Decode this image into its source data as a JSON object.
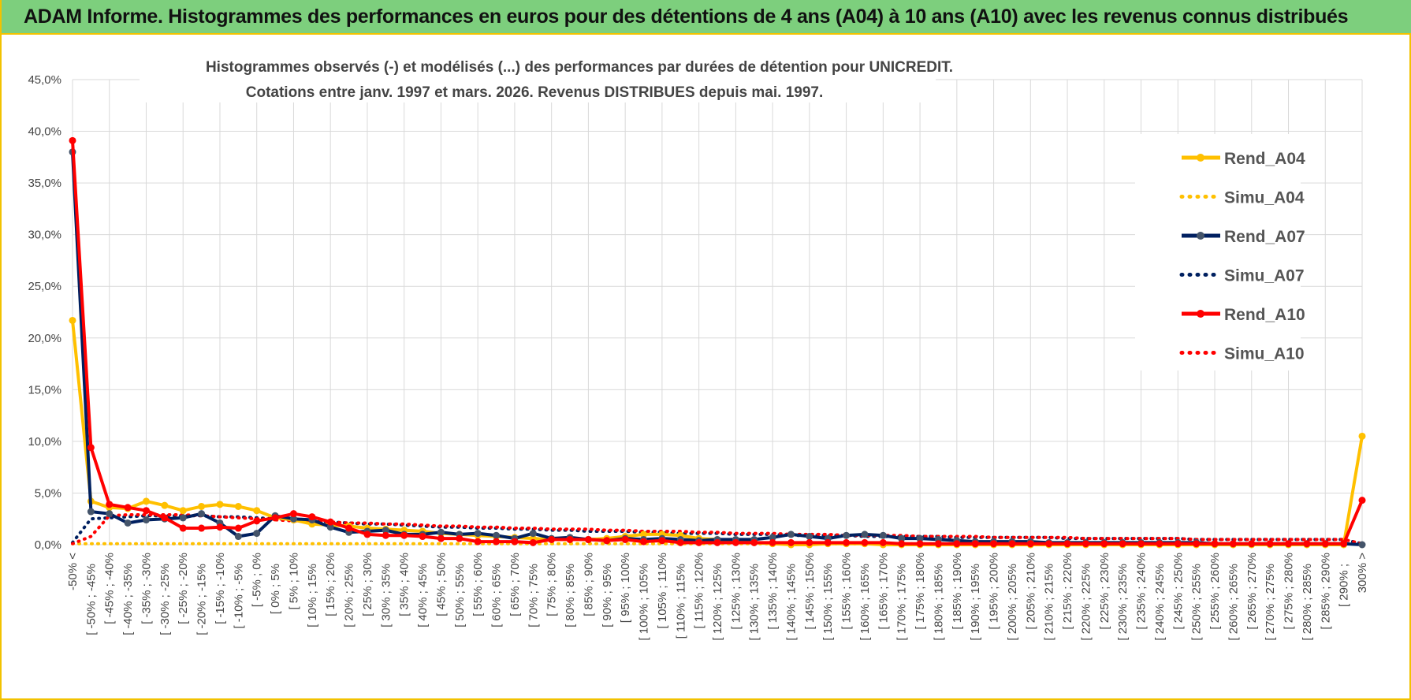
{
  "banner": {
    "title": "ADAM Informe. Histogrammes des performances en euros pour des détentions de 4 ans (A04) à 10 ans (A10) avec les revenus connus distribués"
  },
  "colors": {
    "banner_bg": "#7dcf7d",
    "frame_border": "#f2c200",
    "grid": "#d9d9d9",
    "A04": "#ffc000",
    "A07": "#002060",
    "A07_marker": "#44546a",
    "A10": "#ff0000"
  },
  "chart_data": {
    "type": "line",
    "title_lines": [
      "Histogrammes observés (-) et modélisés (...) des performances par durées de détention pour UNICREDIT.",
      "Cotations entre janv. 1997 et mars. 2026. Revenus DISTRIBUES depuis mai. 1997."
    ],
    "ylim": [
      0,
      45
    ],
    "y_ticks": [
      "0,0%",
      "5,0%",
      "10,0%",
      "15,0%",
      "20,0%",
      "25,0%",
      "30,0%",
      "35,0%",
      "40,0%",
      "45,0%"
    ],
    "y_tick_values": [
      0,
      5,
      10,
      15,
      20,
      25,
      30,
      35,
      40,
      45
    ],
    "grid": true,
    "legend_position": "right",
    "categories": [
      "-50% <",
      "[ -50% ; -45%",
      "[ -45% ; -40%",
      "[ -40% ; -35%",
      "[ -35% ; -30%",
      "[ -30% ; -25%",
      "[ -25% ; -20%",
      "[ -20% ; -15%",
      "[ -15% ; -10%",
      "[ -10% ; -5%",
      "[ -5% ; 0%",
      "[ 0% ; 5%",
      "[ 5% ; 10%",
      "[ 10% ; 15%",
      "[ 15% ; 20%",
      "[ 20% ; 25%",
      "[ 25% ; 30%",
      "[ 30% ; 35%",
      "[ 35% ; 40%",
      "[ 40% ; 45%",
      "[ 45% ; 50%",
      "[ 50% ; 55%",
      "[ 55% ; 60%",
      "[ 60% ; 65%",
      "[ 65% ; 70%",
      "[ 70% ; 75%",
      "[ 75% ; 80%",
      "[ 80% ; 85%",
      "[ 85% ; 90%",
      "[ 90% ; 95%",
      "[ 95% ; 100%",
      "[ 100% ; 105%",
      "[ 105% ; 110%",
      "[ 110% ; 115%",
      "[ 115% ; 120%",
      "[ 120% ; 125%",
      "[ 125% ; 130%",
      "[ 130% ; 135%",
      "[ 135% ; 140%",
      "[ 140% ; 145%",
      "[ 145% ; 150%",
      "[ 150% ; 155%",
      "[ 155% ; 160%",
      "[ 160% ; 165%",
      "[ 165% ; 170%",
      "[ 170% ; 175%",
      "[ 175% ; 180%",
      "[ 180% ; 185%",
      "[ 185% ; 190%",
      "[ 190% ; 195%",
      "[ 195% ; 200%",
      "[ 200% ; 205%",
      "[ 205% ; 210%",
      "[ 210% ; 215%",
      "[ 215% ; 220%",
      "[ 220% ; 225%",
      "[ 225% ; 230%",
      "[ 230% ; 235%",
      "[ 235% ; 240%",
      "[ 240% ; 245%",
      "[ 245% ; 250%",
      "[ 250% ; 255%",
      "[ 255% ; 260%",
      "[ 260% ; 265%",
      "[ 265% ; 270%",
      "[ 270% ; 275%",
      "[ 275% ; 280%",
      "[ 280% ; 285%",
      "[ 285% ; 290%",
      "[ 290% ;",
      "300% >"
    ],
    "x_label_every": 2,
    "series": [
      {
        "name": "Rend_A04",
        "color": "#ffc000",
        "style": "solid",
        "marker": true,
        "values": [
          21.7,
          4.2,
          3.6,
          3.5,
          4.2,
          3.8,
          3.3,
          3.7,
          3.9,
          3.7,
          3.3,
          2.6,
          2.4,
          2.0,
          1.9,
          1.8,
          1.6,
          1.5,
          1.4,
          1.3,
          1.1,
          1.0,
          0.9,
          0.8,
          0.7,
          0.6,
          0.5,
          0.5,
          0.5,
          0.6,
          0.8,
          1.0,
          1.0,
          0.9,
          0.6,
          0.5,
          0.3,
          0.2,
          0.1,
          0.0,
          0.0,
          0.1,
          0.1,
          0.1,
          0.0,
          0.0,
          0.0,
          0.0,
          0.0,
          0.0,
          0.0,
          0.0,
          0.0,
          0.0,
          0.0,
          0.0,
          0.0,
          0.0,
          0.0,
          0.0,
          0.0,
          0.0,
          0.0,
          0.0,
          0.0,
          0.0,
          0.0,
          0.0,
          0.0,
          0.0,
          10.5
        ]
      },
      {
        "name": "Simu_A04",
        "color": "#ffc000",
        "style": "dotted",
        "marker": false,
        "values": [
          0.1,
          0.1,
          0.1,
          0.1,
          0.1,
          0.1,
          0.1,
          0.1,
          0.1,
          0.1,
          0.1,
          0.1,
          0.1,
          0.1,
          0.1,
          0.1,
          0.1,
          0.1,
          0.1,
          0.1,
          0.1,
          0.1,
          0.1,
          0.1,
          0.1,
          0.1,
          0.1,
          0.1,
          0.1,
          0.1,
          0.1,
          0.1,
          0.1,
          0.1,
          0.1,
          0.1,
          0.1,
          0.1,
          0.1,
          0.1,
          0.1,
          0.1,
          0.1,
          0.1,
          0.1,
          0.1,
          0.1,
          0.1,
          0.1,
          0.1,
          0.1,
          0.1,
          0.1,
          0.1,
          0.1,
          0.1,
          0.1,
          0.1,
          0.1,
          0.1,
          0.1,
          0.1,
          0.1,
          0.1,
          0.1,
          0.1,
          0.1,
          0.1,
          0.1,
          0.1,
          0.1
        ]
      },
      {
        "name": "Rend_A07",
        "color": "#002060",
        "style": "solid",
        "marker": true,
        "marker_color": "#44546a",
        "values": [
          38.0,
          3.2,
          3.0,
          2.1,
          2.4,
          2.5,
          2.6,
          3.0,
          2.1,
          0.8,
          1.1,
          2.8,
          2.5,
          2.4,
          1.7,
          1.2,
          1.3,
          1.4,
          1.0,
          1.0,
          1.2,
          1.0,
          1.1,
          0.9,
          0.6,
          1.1,
          0.6,
          0.7,
          0.5,
          0.4,
          0.6,
          0.5,
          0.6,
          0.5,
          0.4,
          0.5,
          0.5,
          0.5,
          0.7,
          1.0,
          0.8,
          0.6,
          0.9,
          1.0,
          0.9,
          0.6,
          0.6,
          0.5,
          0.4,
          0.3,
          0.3,
          0.3,
          0.3,
          0.2,
          0.2,
          0.2,
          0.2,
          0.2,
          0.2,
          0.2,
          0.2,
          0.2,
          0.1,
          0.1,
          0.1,
          0.1,
          0.1,
          0.1,
          0.1,
          0.1,
          0.0
        ]
      },
      {
        "name": "Simu_A07",
        "color": "#002060",
        "style": "dotted",
        "marker": false,
        "values": [
          0.2,
          2.5,
          2.6,
          2.7,
          2.8,
          2.8,
          2.8,
          2.8,
          2.7,
          2.7,
          2.6,
          2.5,
          2.4,
          2.3,
          2.2,
          2.1,
          2.0,
          2.0,
          1.9,
          1.8,
          1.7,
          1.7,
          1.6,
          1.6,
          1.5,
          1.5,
          1.4,
          1.4,
          1.3,
          1.3,
          1.3,
          1.2,
          1.2,
          1.1,
          1.1,
          1.1,
          1.0,
          1.0,
          1.0,
          0.9,
          0.9,
          0.9,
          0.9,
          0.8,
          0.8,
          0.8,
          0.8,
          0.8,
          0.7,
          0.7,
          0.7,
          0.7,
          0.7,
          0.7,
          0.6,
          0.6,
          0.6,
          0.6,
          0.6,
          0.6,
          0.6,
          0.5,
          0.5,
          0.5,
          0.5,
          0.5,
          0.5,
          0.5,
          0.5,
          0.5,
          0.1
        ]
      },
      {
        "name": "Rend_A10",
        "color": "#ff0000",
        "style": "solid",
        "marker": true,
        "values": [
          39.1,
          9.4,
          3.9,
          3.6,
          3.3,
          2.6,
          1.6,
          1.6,
          1.7,
          1.6,
          2.3,
          2.6,
          3.0,
          2.7,
          2.2,
          1.6,
          1.0,
          0.9,
          0.9,
          0.8,
          0.6,
          0.6,
          0.3,
          0.3,
          0.3,
          0.2,
          0.5,
          0.5,
          0.5,
          0.4,
          0.5,
          0.3,
          0.4,
          0.2,
          0.2,
          0.2,
          0.2,
          0.2,
          0.2,
          0.2,
          0.2,
          0.2,
          0.2,
          0.2,
          0.2,
          0.1,
          0.1,
          0.1,
          0.1,
          0.1,
          0.1,
          0.1,
          0.1,
          0.1,
          0.1,
          0.1,
          0.1,
          0.1,
          0.1,
          0.1,
          0.1,
          0.1,
          0.1,
          0.1,
          0.1,
          0.1,
          0.1,
          0.1,
          0.1,
          0.1,
          4.3
        ]
      },
      {
        "name": "Simu_A10",
        "color": "#ff0000",
        "style": "dotted",
        "marker": false,
        "values": [
          0.1,
          0.8,
          2.8,
          2.9,
          2.9,
          2.9,
          2.9,
          2.8,
          2.7,
          2.6,
          2.5,
          2.4,
          2.3,
          2.2,
          2.2,
          2.1,
          2.1,
          2.0,
          2.0,
          1.9,
          1.8,
          1.8,
          1.7,
          1.7,
          1.6,
          1.6,
          1.5,
          1.5,
          1.5,
          1.4,
          1.4,
          1.3,
          1.3,
          1.3,
          1.2,
          1.2,
          1.1,
          1.1,
          1.1,
          1.0,
          1.0,
          1.0,
          0.9,
          0.9,
          0.9,
          0.9,
          0.8,
          0.8,
          0.8,
          0.8,
          0.7,
          0.7,
          0.7,
          0.7,
          0.7,
          0.6,
          0.6,
          0.6,
          0.6,
          0.6,
          0.6,
          0.5,
          0.5,
          0.5,
          0.5,
          0.5,
          0.5,
          0.5,
          0.5,
          0.5,
          0.1
        ]
      }
    ]
  }
}
